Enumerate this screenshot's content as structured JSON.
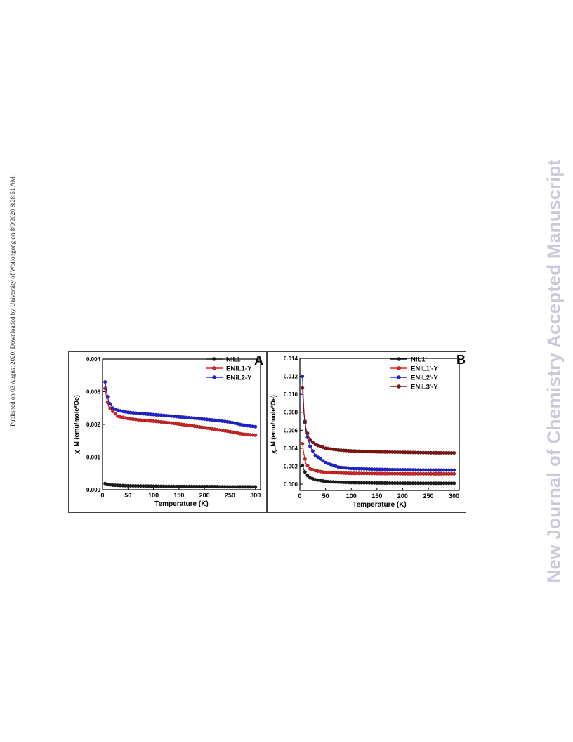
{
  "side_note": "Published on 03 August 2020. Downloaded by University of Wollongong on 8/9/2020 8:28:51 AM.",
  "watermark": "New Journal of Chemistry Accepted Manuscript",
  "chart_data": [
    {
      "panel_label": "A",
      "type": "scatter",
      "xlabel": "Temperature (K)",
      "ylabel": "χ_M (emu/mole*Oe)",
      "xlim": [
        0,
        310
      ],
      "ylim": [
        0,
        0.004
      ],
      "xticks": [
        "0",
        "50",
        "100",
        "150",
        "200",
        "250",
        "300"
      ],
      "yticks": [
        "0.000",
        "0.001",
        "0.002",
        "0.003",
        "0.004"
      ],
      "legend_position": "top-right",
      "series": [
        {
          "name": "NiL1",
          "color": "#1a1a1a",
          "x": [
            5,
            10,
            20,
            50,
            100,
            150,
            200,
            250,
            300
          ],
          "y": [
            0.00019,
            0.00016,
            0.00014,
            0.00012,
            0.00011,
            0.0001,
            0.0001,
            9e-05,
            9e-05
          ]
        },
        {
          "name": "ENiL1-Y",
          "color": "#e02020",
          "x": [
            5,
            8,
            12,
            20,
            30,
            50,
            75,
            100,
            125,
            150,
            175,
            200,
            225,
            250,
            275,
            300
          ],
          "y": [
            0.0031,
            0.0028,
            0.00255,
            0.0024,
            0.00225,
            0.00218,
            0.00213,
            0.0021,
            0.00206,
            0.00201,
            0.00196,
            0.0019,
            0.00184,
            0.00178,
            0.0017,
            0.00167
          ]
        },
        {
          "name": "ENiL2-Y",
          "color": "#2020e0",
          "x": [
            5,
            8,
            12,
            20,
            30,
            50,
            75,
            100,
            125,
            150,
            175,
            200,
            225,
            250,
            275,
            300
          ],
          "y": [
            0.0033,
            0.003,
            0.0027,
            0.0025,
            0.00243,
            0.00237,
            0.00233,
            0.0023,
            0.00227,
            0.00223,
            0.0022,
            0.00216,
            0.00212,
            0.00207,
            0.00198,
            0.00193
          ]
        }
      ]
    },
    {
      "panel_label": "B",
      "type": "scatter",
      "xlabel": "Temperature (K)",
      "ylabel": "χ_M (emu/mole*Oe)",
      "xlim": [
        0,
        310
      ],
      "ylim": [
        -0.0007,
        0.014
      ],
      "xticks": [
        "0",
        "50",
        "100",
        "150",
        "200",
        "250",
        "300"
      ],
      "yticks": [
        "0.000",
        "0.002",
        "0.004",
        "0.006",
        "0.008",
        "0.010",
        "0.012",
        "0.014"
      ],
      "legend_position": "top-right",
      "series": [
        {
          "name": "NiL1'",
          "color": "#1a1a1a",
          "x": [
            5,
            8,
            12,
            20,
            30,
            50,
            75,
            100,
            150,
            200,
            250,
            300
          ],
          "y": [
            0.0021,
            0.0016,
            0.0011,
            0.0007,
            0.0005,
            0.0003,
            0.00022,
            0.00017,
            0.00013,
            0.00011,
            0.0001,
            0.0001
          ]
        },
        {
          "name": "ENiL1'-Y",
          "color": "#e02020",
          "x": [
            5,
            8,
            12,
            20,
            30,
            50,
            75,
            100,
            150,
            200,
            250,
            300
          ],
          "y": [
            0.0045,
            0.0033,
            0.0023,
            0.0017,
            0.0015,
            0.0013,
            0.00125,
            0.0012,
            0.00118,
            0.00116,
            0.00115,
            0.00115
          ]
        },
        {
          "name": "ENiL2'-Y",
          "color": "#2020e0",
          "x": [
            5,
            8,
            12,
            20,
            30,
            50,
            75,
            100,
            150,
            200,
            250,
            300
          ],
          "y": [
            0.012,
            0.0079,
            0.0058,
            0.0042,
            0.0032,
            0.0024,
            0.0019,
            0.00175,
            0.00165,
            0.0016,
            0.00157,
            0.00156
          ]
        },
        {
          "name": "ENiL3'-Y",
          "color": "#8a1010",
          "x": [
            5,
            8,
            12,
            20,
            30,
            50,
            75,
            100,
            150,
            200,
            250,
            300
          ],
          "y": [
            0.0107,
            0.0079,
            0.0061,
            0.0049,
            0.0044,
            0.004,
            0.0038,
            0.0037,
            0.0036,
            0.00355,
            0.0035,
            0.00348
          ]
        }
      ]
    }
  ]
}
